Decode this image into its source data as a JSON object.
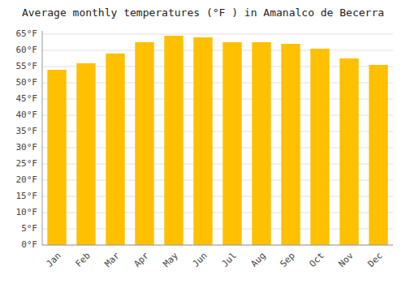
{
  "chart_data": {
    "type": "bar",
    "title": "Average monthly temperatures (°F ) in Amanalco de Becerra",
    "categories": [
      "Jan",
      "Feb",
      "Mar",
      "Apr",
      "May",
      "Jun",
      "Jul",
      "Aug",
      "Sep",
      "Oct",
      "Nov",
      "Dec"
    ],
    "values": [
      54,
      56,
      59,
      62.5,
      64.5,
      64,
      62.5,
      62.5,
      62,
      60.5,
      57.5,
      55.5
    ],
    "color": "#FFC000",
    "ylim": [
      0,
      66
    ],
    "yticks": [
      {
        "value": 0,
        "label": "0°F"
      },
      {
        "value": 5,
        "label": "5°F"
      },
      {
        "value": 10,
        "label": "10°F"
      },
      {
        "value": 15,
        "label": "15°F"
      },
      {
        "value": 20,
        "label": "20°F"
      },
      {
        "value": 25,
        "label": "25°F"
      },
      {
        "value": 30,
        "label": "30°F"
      },
      {
        "value": 35,
        "label": "35°F"
      },
      {
        "value": 40,
        "label": "40°F"
      },
      {
        "value": 45,
        "label": "45°F"
      },
      {
        "value": 50,
        "label": "50°F"
      },
      {
        "value": 55,
        "label": "55°F"
      },
      {
        "value": 60,
        "label": "60°F"
      },
      {
        "value": 65,
        "label": "65°F"
      }
    ],
    "grid": true
  }
}
